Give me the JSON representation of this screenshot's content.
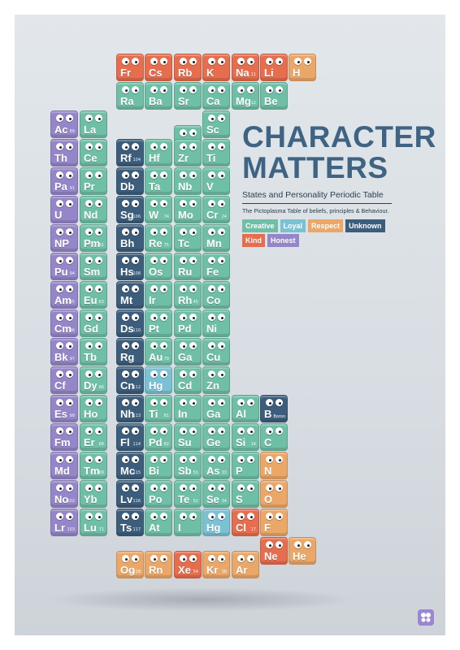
{
  "poster": {
    "title_line1": "CHARACTER",
    "title_line2": "MATTERS",
    "subtitle": "States and Personality Periodic Table",
    "tagline": "The Pictoplasma Table of beliefs, principles & Behaviour."
  },
  "legend": [
    {
      "label": "Creative",
      "key": "creative"
    },
    {
      "label": "Loyal",
      "key": "loyal"
    },
    {
      "label": "Respect",
      "key": "respect"
    },
    {
      "label": "Unknown",
      "key": "unknown"
    },
    {
      "label": "Kind",
      "key": "kind"
    },
    {
      "label": "Honest",
      "key": "honest"
    }
  ],
  "colors": {
    "creative": "#6fbfa7",
    "loyal": "#7ac2d3",
    "respect": "#eba767",
    "unknown": "#3c5e7c",
    "kind": "#e66d4e",
    "honest": "#9486c9",
    "title": "#3e6383"
  },
  "logo_icon": "pictoplasma-logo-icon",
  "elements": [
    {
      "sym": "Fr",
      "num": "",
      "cat": "kind"
    },
    {
      "sym": "Cs",
      "num": "",
      "cat": "kind"
    },
    {
      "sym": "Rb",
      "num": "",
      "cat": "kind"
    },
    {
      "sym": "K",
      "num": "",
      "cat": "kind"
    },
    {
      "sym": "Na",
      "num": "11",
      "cat": "kind"
    },
    {
      "sym": "Li",
      "num": "",
      "cat": "kind"
    },
    {
      "sym": "H",
      "num": "",
      "cat": "respect"
    },
    {
      "sym": "Ra",
      "num": "",
      "cat": "creative"
    },
    {
      "sym": "Ba",
      "num": "",
      "cat": "creative"
    },
    {
      "sym": "Sr",
      "num": "",
      "cat": "creative"
    },
    {
      "sym": "Ca",
      "num": "",
      "cat": "creative"
    },
    {
      "sym": "Mg",
      "num": "12",
      "cat": "creative"
    },
    {
      "sym": "Be",
      "num": "",
      "cat": "creative"
    },
    {
      "sym": "Sc",
      "num": "",
      "cat": "creative"
    },
    {
      "sym": "Y",
      "num": "",
      "cat": "creative"
    },
    {
      "sym": "Ac",
      "num": "89",
      "cat": "honest"
    },
    {
      "sym": "La",
      "num": "",
      "cat": "creative"
    },
    {
      "sym": "Th",
      "num": "",
      "cat": "honest"
    },
    {
      "sym": "Ce",
      "num": "",
      "cat": "creative"
    },
    {
      "sym": "Rf",
      "num": "104",
      "cat": "unknown"
    },
    {
      "sym": "Hf",
      "num": "",
      "cat": "creative"
    },
    {
      "sym": "Zr",
      "num": "",
      "cat": "creative"
    },
    {
      "sym": "Ti",
      "num": "",
      "cat": "creative"
    },
    {
      "sym": "Pa",
      "num": "91",
      "cat": "honest"
    },
    {
      "sym": "Pr",
      "num": "",
      "cat": "creative"
    },
    {
      "sym": "Db",
      "num": "",
      "cat": "unknown"
    },
    {
      "sym": "Ta",
      "num": "",
      "cat": "creative"
    },
    {
      "sym": "Nb",
      "num": "",
      "cat": "creative"
    },
    {
      "sym": "V",
      "num": "",
      "cat": "creative"
    },
    {
      "sym": "U",
      "num": "",
      "cat": "honest"
    },
    {
      "sym": "Nd",
      "num": "",
      "cat": "creative"
    },
    {
      "sym": "Sg",
      "num": "106",
      "cat": "unknown"
    },
    {
      "sym": "W",
      "num": "74",
      "cat": "creative"
    },
    {
      "sym": "Mo",
      "num": "",
      "cat": "creative"
    },
    {
      "sym": "Cr",
      "num": "24",
      "cat": "creative"
    },
    {
      "sym": "NP",
      "num": "",
      "cat": "honest"
    },
    {
      "sym": "Pm",
      "num": "61",
      "cat": "creative"
    },
    {
      "sym": "Bh",
      "num": "",
      "cat": "unknown"
    },
    {
      "sym": "Re",
      "num": "75",
      "cat": "creative"
    },
    {
      "sym": "Tc",
      "num": "",
      "cat": "creative"
    },
    {
      "sym": "Mn",
      "num": "",
      "cat": "creative"
    },
    {
      "sym": "Pu",
      "num": "94",
      "cat": "honest"
    },
    {
      "sym": "Sm",
      "num": "",
      "cat": "creative"
    },
    {
      "sym": "Hs",
      "num": "108",
      "cat": "unknown"
    },
    {
      "sym": "Os",
      "num": "",
      "cat": "creative"
    },
    {
      "sym": "Ru",
      "num": "",
      "cat": "creative"
    },
    {
      "sym": "Fe",
      "num": "",
      "cat": "creative"
    },
    {
      "sym": "Am",
      "num": "95",
      "cat": "honest"
    },
    {
      "sym": "Eu",
      "num": "63",
      "cat": "creative"
    },
    {
      "sym": "Mt",
      "num": "",
      "cat": "unknown"
    },
    {
      "sym": "Ir",
      "num": "",
      "cat": "creative"
    },
    {
      "sym": "Rh",
      "num": "45",
      "cat": "creative"
    },
    {
      "sym": "Co",
      "num": "",
      "cat": "creative"
    },
    {
      "sym": "Cm",
      "num": "96",
      "cat": "honest"
    },
    {
      "sym": "Gd",
      "num": "",
      "cat": "creative"
    },
    {
      "sym": "Ds",
      "num": "110",
      "cat": "unknown"
    },
    {
      "sym": "Pt",
      "num": "",
      "cat": "creative"
    },
    {
      "sym": "Pd",
      "num": "",
      "cat": "creative"
    },
    {
      "sym": "Ni",
      "num": "",
      "cat": "creative"
    },
    {
      "sym": "Bk",
      "num": "97",
      "cat": "honest"
    },
    {
      "sym": "Tb",
      "num": "",
      "cat": "creative"
    },
    {
      "sym": "Rg",
      "num": "",
      "cat": "unknown"
    },
    {
      "sym": "Au",
      "num": "79",
      "cat": "creative"
    },
    {
      "sym": "Ga",
      "num": "",
      "cat": "creative"
    },
    {
      "sym": "Cu",
      "num": "",
      "cat": "creative"
    },
    {
      "sym": "Cf",
      "num": "",
      "cat": "honest"
    },
    {
      "sym": "Dy",
      "num": "66",
      "cat": "creative"
    },
    {
      "sym": "Cn",
      "num": "112",
      "cat": "unknown"
    },
    {
      "sym": "Hg",
      "num": "",
      "cat": "loyal"
    },
    {
      "sym": "Cd",
      "num": "",
      "cat": "creative"
    },
    {
      "sym": "Zn",
      "num": "",
      "cat": "creative"
    },
    {
      "sym": "Es",
      "num": "99",
      "cat": "honest"
    },
    {
      "sym": "Ho",
      "num": "",
      "cat": "creative"
    },
    {
      "sym": "Nh",
      "num": "113",
      "cat": "unknown"
    },
    {
      "sym": "Ti",
      "num": "81",
      "cat": "creative"
    },
    {
      "sym": "In",
      "num": "",
      "cat": "creative"
    },
    {
      "sym": "Ga",
      "num": "",
      "cat": "creative"
    },
    {
      "sym": "Al",
      "num": "",
      "cat": "creative"
    },
    {
      "sym": "B",
      "num": "Boron",
      "cat": "unknown"
    },
    {
      "sym": "Fm",
      "num": "",
      "cat": "honest"
    },
    {
      "sym": "Er",
      "num": "68",
      "cat": "creative"
    },
    {
      "sym": "Fl",
      "num": "114",
      "cat": "unknown"
    },
    {
      "sym": "Pd",
      "num": "82",
      "cat": "creative"
    },
    {
      "sym": "Su",
      "num": "",
      "cat": "creative"
    },
    {
      "sym": "Ge",
      "num": "",
      "cat": "creative"
    },
    {
      "sym": "Si",
      "num": "14",
      "cat": "creative"
    },
    {
      "sym": "C",
      "num": "",
      "cat": "creative"
    },
    {
      "sym": "Md",
      "num": "",
      "cat": "honest"
    },
    {
      "sym": "Tm",
      "num": "69",
      "cat": "creative"
    },
    {
      "sym": "Mc",
      "num": "115",
      "cat": "unknown"
    },
    {
      "sym": "Bi",
      "num": "",
      "cat": "creative"
    },
    {
      "sym": "Sb",
      "num": "51",
      "cat": "creative"
    },
    {
      "sym": "As",
      "num": "33",
      "cat": "creative"
    },
    {
      "sym": "P",
      "num": "",
      "cat": "creative"
    },
    {
      "sym": "N",
      "num": "",
      "cat": "respect"
    },
    {
      "sym": "No",
      "num": "102",
      "cat": "honest"
    },
    {
      "sym": "Yb",
      "num": "",
      "cat": "creative"
    },
    {
      "sym": "Lv",
      "num": "116",
      "cat": "unknown"
    },
    {
      "sym": "Po",
      "num": "",
      "cat": "creative"
    },
    {
      "sym": "Te",
      "num": "52",
      "cat": "creative"
    },
    {
      "sym": "Se",
      "num": "34",
      "cat": "creative"
    },
    {
      "sym": "S",
      "num": "",
      "cat": "creative"
    },
    {
      "sym": "O",
      "num": "",
      "cat": "respect"
    },
    {
      "sym": "Lr",
      "num": "103",
      "cat": "honest"
    },
    {
      "sym": "Lu",
      "num": "71",
      "cat": "creative"
    },
    {
      "sym": "Ts",
      "num": "117",
      "cat": "unknown"
    },
    {
      "sym": "At",
      "num": "",
      "cat": "creative"
    },
    {
      "sym": "I",
      "num": "",
      "cat": "creative"
    },
    {
      "sym": "Hg",
      "num": "",
      "cat": "loyal"
    },
    {
      "sym": "Cl",
      "num": "17",
      "cat": "kind"
    },
    {
      "sym": "F",
      "num": "",
      "cat": "respect"
    },
    {
      "sym": "Og",
      "num": "118",
      "cat": "respect"
    },
    {
      "sym": "Rn",
      "num": "",
      "cat": "respect"
    },
    {
      "sym": "Xe",
      "num": "54",
      "cat": "kind"
    },
    {
      "sym": "Kr",
      "num": "36",
      "cat": "respect"
    },
    {
      "sym": "Ar",
      "num": "",
      "cat": "respect"
    },
    {
      "sym": "Ne",
      "num": "",
      "cat": "kind"
    },
    {
      "sym": "He",
      "num": "",
      "cat": "respect"
    }
  ]
}
